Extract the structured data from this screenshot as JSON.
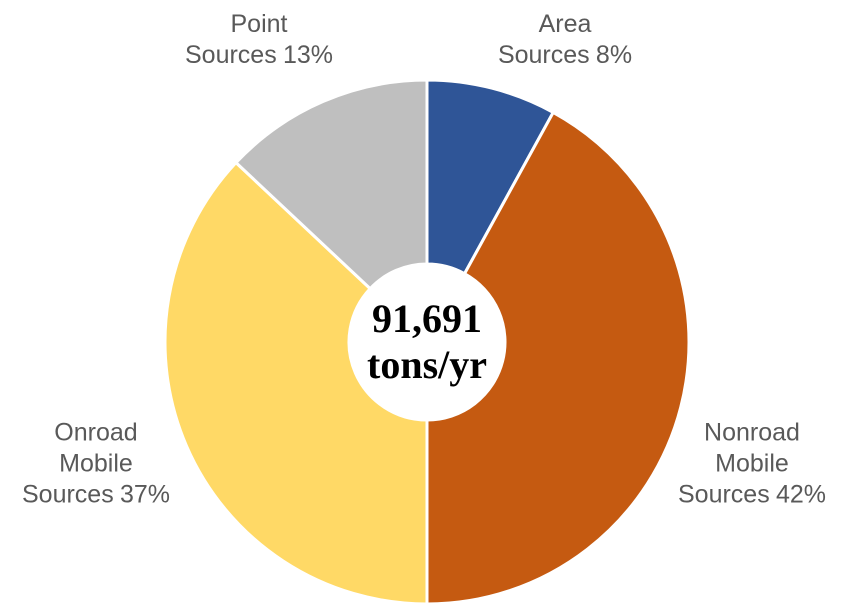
{
  "chart_data": {
    "type": "donut",
    "categories": [
      "Area\nSources",
      "Nonroad\nMobile\nSources",
      "Onroad\nMobile\nSources",
      "Point\nSources"
    ],
    "values": [
      8,
      42,
      37,
      13
    ],
    "value_labels": [
      "8%",
      "42%",
      "37%",
      "13%"
    ],
    "colors": [
      "#2f5597",
      "#c55a11",
      "#ffd966",
      "#bfbfbf"
    ],
    "center_label": "91,691\ntons/yr"
  }
}
